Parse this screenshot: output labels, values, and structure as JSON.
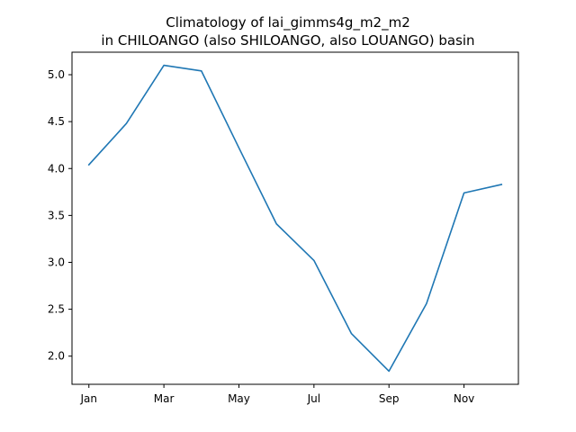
{
  "chart_data": {
    "type": "line",
    "title_lines": [
      "Climatology of lai_gimms4g_m2_m2",
      "in CHILOANGO (also SHILOANGO, also LOUANGO) basin"
    ],
    "xlabel": "",
    "ylabel": "",
    "x": [
      1,
      2,
      3,
      4,
      5,
      6,
      7,
      8,
      9,
      10,
      11,
      12
    ],
    "xticks": [
      {
        "value": 1,
        "label": "Jan"
      },
      {
        "value": 3,
        "label": "Mar"
      },
      {
        "value": 5,
        "label": "May"
      },
      {
        "value": 7,
        "label": "Jul"
      },
      {
        "value": 9,
        "label": "Sep"
      },
      {
        "value": 11,
        "label": "Nov"
      }
    ],
    "yticks": [
      {
        "value": 2.0,
        "label": "2.0"
      },
      {
        "value": 2.5,
        "label": "2.5"
      },
      {
        "value": 3.0,
        "label": "3.0"
      },
      {
        "value": 3.5,
        "label": "3.5"
      },
      {
        "value": 4.0,
        "label": "4.0"
      },
      {
        "value": 4.5,
        "label": "4.5"
      },
      {
        "value": 5.0,
        "label": "5.0"
      }
    ],
    "xlim": [
      0.55,
      12.45
    ],
    "ylim": [
      1.7,
      5.24
    ],
    "series": [
      {
        "color": "#1f77b4",
        "values": [
          4.04,
          4.48,
          5.1,
          5.04,
          4.22,
          3.41,
          3.02,
          2.24,
          1.84,
          2.56,
          3.74,
          3.83
        ]
      }
    ],
    "grid": false,
    "legend": "none"
  }
}
